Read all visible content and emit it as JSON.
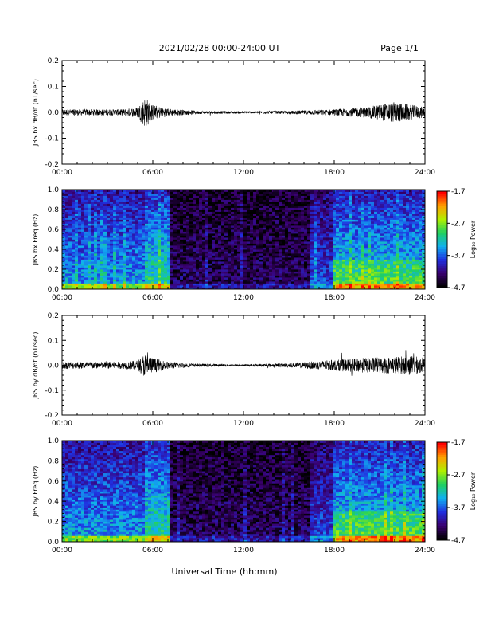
{
  "header": {
    "title": "2021/02/28  00:00-24:00 UT",
    "page": "Page 1/1"
  },
  "x_axis": {
    "label": "Universal Time (hh:mm)",
    "tick_labels": [
      "00:00",
      "06:00",
      "12:00",
      "18:00",
      "24:00"
    ],
    "range_hours": [
      0,
      24
    ]
  },
  "colorbar": {
    "label": "Log₁₀ Power",
    "tick_labels": [
      "-1.7",
      "-2.7",
      "-3.7",
      "-4.7"
    ],
    "range": [
      -4.7,
      -1.7
    ],
    "colors": [
      "#000000",
      "#3a0070",
      "#2030e0",
      "#10b0f0",
      "#20d060",
      "#b0f000",
      "#ffa000",
      "#ff0000"
    ]
  },
  "chart_data": [
    {
      "type": "line",
      "ylabel": "JBS bx dB/dt (nT/sec)",
      "ylim": [
        -0.2,
        0.2
      ],
      "y_tick_labels": [
        "-0.2",
        "-0.1",
        "0.0",
        "0.1",
        "0.2"
      ],
      "x_hours": [
        0,
        2,
        4,
        5,
        5.5,
        6,
        7,
        9,
        12,
        15,
        18,
        20,
        22,
        23,
        24
      ],
      "amplitude": [
        0.012,
        0.012,
        0.012,
        0.02,
        0.06,
        0.03,
        0.015,
        0.006,
        0.004,
        0.006,
        0.012,
        0.02,
        0.04,
        0.03,
        0.02
      ]
    },
    {
      "type": "heatmap",
      "ylabel": "JBS bx Freq (Hz)",
      "ylim": [
        0.0,
        1.0
      ],
      "y_tick_labels": [
        "0.0",
        "0.2",
        "0.4",
        "0.6",
        "0.8",
        "1.0"
      ],
      "zlim": [
        -4.7,
        -1.7
      ]
    },
    {
      "type": "line",
      "ylabel": "JBS by dB/dt (nT/sec)",
      "ylim": [
        -0.2,
        0.2
      ],
      "y_tick_labels": [
        "-0.2",
        "-0.1",
        "0.0",
        "0.1",
        "0.2"
      ],
      "x_hours": [
        0,
        2,
        4,
        5,
        5.5,
        6,
        7,
        9,
        12,
        15,
        18,
        20,
        22,
        23,
        24
      ],
      "amplitude": [
        0.015,
        0.014,
        0.014,
        0.02,
        0.05,
        0.03,
        0.015,
        0.006,
        0.004,
        0.008,
        0.022,
        0.03,
        0.035,
        0.04,
        0.03
      ]
    },
    {
      "type": "heatmap",
      "ylabel": "JBS by Freq (Hz)",
      "ylim": [
        0.0,
        1.0
      ],
      "y_tick_labels": [
        "0.0",
        "0.2",
        "0.4",
        "0.6",
        "0.8",
        "1.0"
      ],
      "zlim": [
        -4.7,
        -1.7
      ]
    }
  ]
}
